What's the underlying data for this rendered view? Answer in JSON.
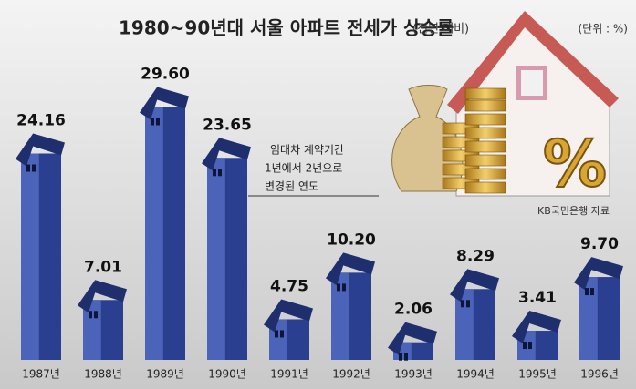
{
  "chart_data": {
    "type": "bar",
    "title": "1980~90년대 서울 아파트 전세가 상승률",
    "subtitle": "(전년 대비)",
    "unit": "(단위 : %)",
    "source": "KB국민은행 자료",
    "annotation": [
      "임대차 계약기간",
      "1년에서 2년으로",
      "변경된 연도"
    ],
    "categories": [
      "1987년",
      "1988년",
      "1989년",
      "1990년",
      "1991년",
      "1992년",
      "1993년",
      "1994년",
      "1995년",
      "1996년"
    ],
    "values": [
      24.16,
      7.01,
      29.6,
      23.65,
      4.75,
      10.2,
      2.06,
      8.29,
      3.41,
      9.7
    ],
    "value_labels": [
      "24.16",
      "7.01",
      "29.60",
      "23.65",
      "4.75",
      "10.20",
      "2.06",
      "8.29",
      "3.41",
      "9.70"
    ],
    "color": "#2a3f8f",
    "ylim": [
      0,
      32
    ]
  }
}
